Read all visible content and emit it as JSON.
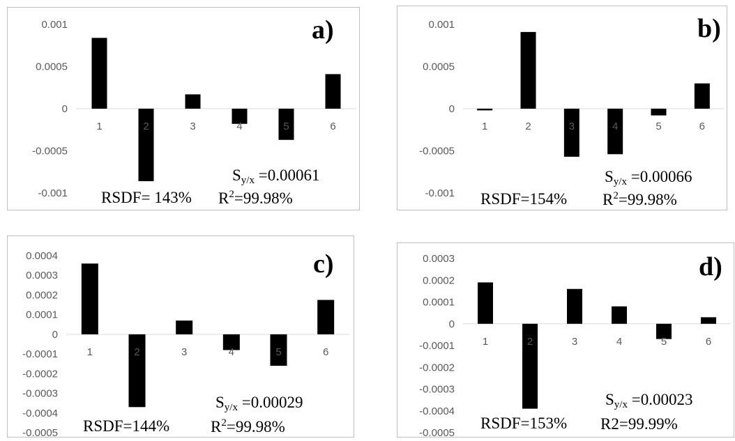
{
  "chart_data": [
    {
      "type": "bar",
      "panel_label": "a)",
      "categories": [
        "1",
        "2",
        "3",
        "4",
        "5",
        "6"
      ],
      "values": [
        0.00084,
        -0.00086,
        0.00017,
        -0.00018,
        -0.00037,
        0.00041
      ],
      "ylim": [
        -0.001,
        0.001
      ],
      "yticks": [
        "0.001",
        "0.0005",
        "0",
        "-0.0005",
        "-0.001"
      ],
      "ytick_values": [
        0.001,
        0.0005,
        0,
        -0.0005,
        -0.001
      ],
      "grid": true,
      "annotations": {
        "syx_prefix": "S",
        "syx_sub": "y/x",
        "syx_value": " =0.00061",
        "rsdf": "RSDF= 143%",
        "r2_prefix": "R",
        "r2_sup": "2",
        "r2_value": "=99.98%"
      }
    },
    {
      "type": "bar",
      "panel_label": "b)",
      "categories": [
        "1",
        "2",
        "3",
        "4",
        "5",
        "6"
      ],
      "values": [
        -2e-05,
        0.00091,
        -0.00057,
        -0.00054,
        -8e-05,
        0.0003
      ],
      "ylim": [
        -0.001,
        0.001
      ],
      "yticks": [
        "0.001",
        "0.0005",
        "0",
        "-0.0005",
        "-0.001"
      ],
      "ytick_values": [
        0.001,
        0.0005,
        0,
        -0.0005,
        -0.001
      ],
      "grid": true,
      "annotations": {
        "syx_prefix": "S",
        "syx_sub": "y/x",
        "syx_value": " =0.00066",
        "rsdf": "RSDF=154%",
        "r2_prefix": "R",
        "r2_sup": "2",
        "r2_value": "=99.98%"
      }
    },
    {
      "type": "bar",
      "panel_label": "c)",
      "categories": [
        "1",
        "2",
        "3",
        "4",
        "5",
        "6"
      ],
      "values": [
        0.00036,
        -0.00037,
        7e-05,
        -8e-05,
        -0.00016,
        0.000175
      ],
      "ylim": [
        -0.0005,
        0.0004
      ],
      "yticks": [
        "0.0004",
        "0.0003",
        "0.0002",
        "0.0001",
        "0",
        "-0.0001",
        "-0.0002",
        "-0.0003",
        "-0.0004",
        "-0.0005"
      ],
      "ytick_values": [
        0.0004,
        0.0003,
        0.0002,
        0.0001,
        0,
        -0.0001,
        -0.0002,
        -0.0003,
        -0.0004,
        -0.0005
      ],
      "grid": true,
      "annotations": {
        "syx_prefix": "S",
        "syx_sub": "y/x",
        "syx_value": " =0.00029",
        "rsdf": "RSDF=144%",
        "r2_prefix": "R",
        "r2_sup": "2",
        "r2_value": "=99.98%"
      }
    },
    {
      "type": "bar",
      "panel_label": "d)",
      "categories": [
        "1",
        "2",
        "3",
        "4",
        "5",
        "6"
      ],
      "values": [
        0.00019,
        -0.00039,
        0.00016,
        8e-05,
        -7e-05,
        3e-05
      ],
      "ylim": [
        -0.0005,
        0.0003
      ],
      "yticks": [
        "0.0003",
        "0.0002",
        "0.0001",
        "0",
        "-0.0001",
        "-0.0002",
        "-0.0003",
        "-0.0004",
        "-0.0005"
      ],
      "ytick_values": [
        0.0003,
        0.0002,
        0.0001,
        0,
        -0.0001,
        -0.0002,
        -0.0003,
        -0.0004,
        -0.0005
      ],
      "grid": true,
      "annotations": {
        "syx_prefix": "S",
        "syx_sub": "y/x",
        "syx_value": " =0.00023",
        "rsdf": "RSDF=153%",
        "r2_prefix": "R2",
        "r2_sup": "",
        "r2_value": "=99.99%"
      }
    }
  ]
}
